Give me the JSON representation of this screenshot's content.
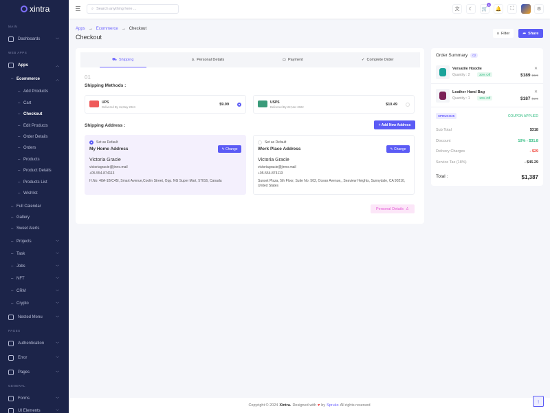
{
  "brand": "xintra",
  "sidebar": {
    "headings": {
      "main": "MAIN",
      "web_apps": "WEB APPS",
      "pages": "PAGES",
      "general": "GENERAL"
    },
    "items": [
      {
        "label": "Dashboards"
      },
      {
        "label": "Apps"
      },
      {
        "label": "Ecommerce"
      },
      {
        "label": "Add Products"
      },
      {
        "label": "Cart"
      },
      {
        "label": "Checkout"
      },
      {
        "label": "Edit Products"
      },
      {
        "label": "Order Details"
      },
      {
        "label": "Orders"
      },
      {
        "label": "Products"
      },
      {
        "label": "Product Details"
      },
      {
        "label": "Products List"
      },
      {
        "label": "Wishlist"
      },
      {
        "label": "Full Calendar"
      },
      {
        "label": "Gallery"
      },
      {
        "label": "Sweet Alerts"
      },
      {
        "label": "Projects"
      },
      {
        "label": "Task"
      },
      {
        "label": "Jobs"
      },
      {
        "label": "NFT"
      },
      {
        "label": "CRM"
      },
      {
        "label": "Crypto"
      },
      {
        "label": "Nested Menu"
      },
      {
        "label": "Authentication"
      },
      {
        "label": "Error"
      },
      {
        "label": "Pages"
      },
      {
        "label": "Forms"
      },
      {
        "label": "UI Elements"
      }
    ]
  },
  "header": {
    "search_placeholder": "Search anything here ...",
    "cart_count": "5"
  },
  "breadcrumb": [
    "Apps",
    "Ecommerce",
    "Checkout"
  ],
  "page_title": "Checkout",
  "actions": {
    "filter": "Filter",
    "share": "Share"
  },
  "tabs": [
    "Shipping",
    "Personal Details",
    "Payment",
    "Complete Order"
  ],
  "checkout": {
    "step": "01",
    "methods_title": "Shipping Methods :",
    "methods": [
      {
        "name": "UPS",
        "delivery": "Delivered By 11,May 2024",
        "price": "$9.99",
        "selected": true
      },
      {
        "name": "USPS",
        "delivery": "Delivered By 22,Nov 2022",
        "price": "$10.49",
        "selected": false
      }
    ],
    "address_title": "Shipping Address :",
    "add_address": "+ Add New Address",
    "addresses": [
      {
        "default_label": "Set as Default",
        "title": "My Home Address",
        "change": "Change",
        "name": "Victoria Gracie",
        "email": "victoriagracie@jinno.mail",
        "phone": "+05-554-874113",
        "address": "H.No: 48A-1B/C45l, Smart Avenue,Coolin Street, Opp. NG Super Mart, 57016, Canada",
        "selected": true
      },
      {
        "default_label": "Set as Default",
        "title": "Work Place Address",
        "change": "Change",
        "name": "Victoria Gracie",
        "email": "victoriagracie@jinno.mail",
        "phone": "+05-554-874113",
        "address": "Sunset Plaza, 5th Floor, Suite No: 502, Ocean Avenue,, Seaview Heights, Sunnydale, CA 90210, United States",
        "selected": false
      }
    ],
    "next": "Personal Details"
  },
  "summary": {
    "title": "Order Summary",
    "count": "02",
    "products": [
      {
        "name": "Versatile Hoodie",
        "qty": "Quantity : 2",
        "off": "30% Off",
        "price": "$189",
        "old": "$329",
        "color": "#1aa39a"
      },
      {
        "name": "Leather Hand Bag",
        "qty": "Quantity : 1",
        "off": "10% Off",
        "price": "$187",
        "old": "$199",
        "color": "#7a1f55"
      }
    ],
    "coupon": "SPRUKO25",
    "coupon_status": "COUPON APPLIED",
    "rows": [
      {
        "label": "Sub Total",
        "value": "$318"
      },
      {
        "label": "Discount",
        "value": "10% - $31.8"
      },
      {
        "label": "Delivery Charges",
        "value": "- $29"
      },
      {
        "label": "Service Tax (18%)",
        "value": "- $45.29"
      }
    ],
    "total_label": "Total :",
    "total": "$1,387"
  },
  "footer": {
    "pre": "Copyright © 2024",
    "brand": "Xintra.",
    "mid": "Designed with",
    "by": "by",
    "company": "Spruko",
    "post": "All rights reserved"
  },
  "colors": {
    "primary": "#5b5bf5",
    "sidebar": "#1c2449",
    "success": "#2dbb7f",
    "danger": "#f0453a"
  }
}
